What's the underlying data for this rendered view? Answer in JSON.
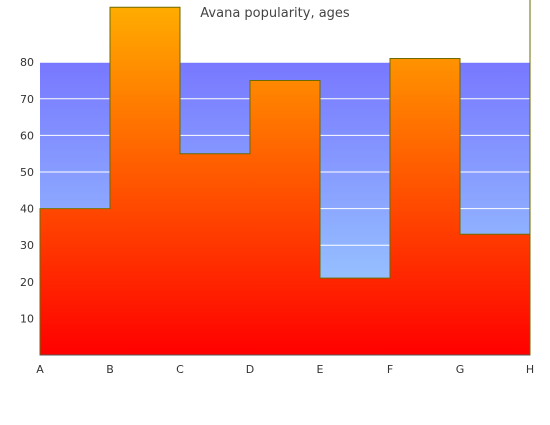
{
  "chart_data": {
    "type": "area",
    "title": "Avana popularity, ages",
    "xlabel": "",
    "ylabel": "",
    "categories": [
      "A",
      "B",
      "C",
      "D",
      "E",
      "F",
      "G",
      "H"
    ],
    "values": [
      40,
      95,
      55,
      75,
      21,
      81,
      33,
      98
    ],
    "ylim": [
      0,
      80
    ],
    "yticks": [
      10,
      20,
      30,
      40,
      50,
      60,
      70,
      80
    ],
    "grid": true,
    "legend": "none",
    "step": true,
    "colors": {
      "plot_bg_top": "#7878ff",
      "plot_bg_bottom": "#a0d8ff",
      "area_top": "#ffb000",
      "area_bottom": "#ff0000",
      "area_stroke": "#6b6b00",
      "grid": "#ffffff",
      "axis": "#555555"
    }
  }
}
